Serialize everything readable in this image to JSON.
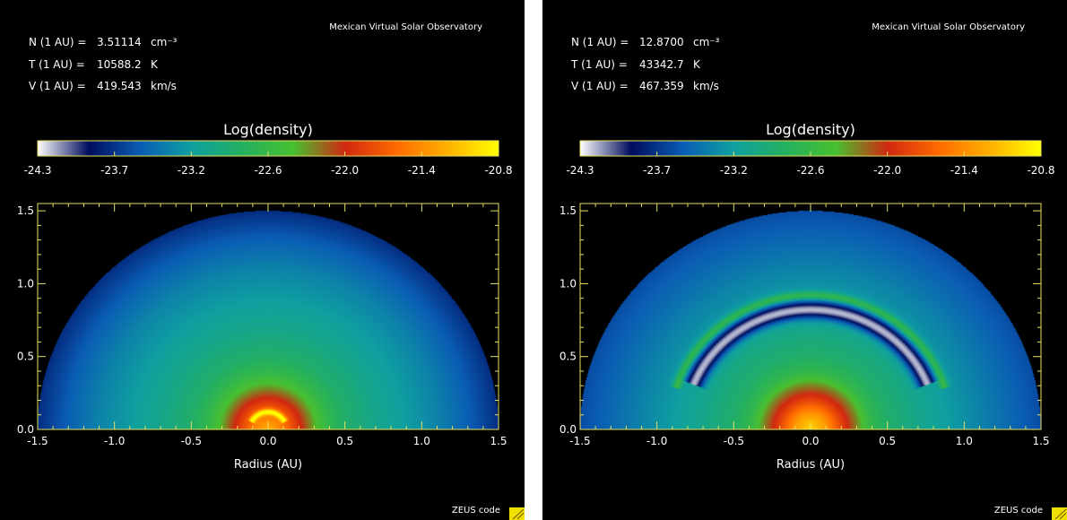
{
  "panels": [
    {
      "observatory": "Mexican Virtual Solar Observatory",
      "params": [
        {
          "label": "N (1 AU) =",
          "value": "3.51114",
          "unit": "cm⁻³"
        },
        {
          "label": "T (1 AU) =",
          "value": "10588.2",
          "unit": "K"
        },
        {
          "label": "V (1 AU) =",
          "value": "419.543",
          "unit": "km/s"
        }
      ],
      "footer": "ZEUS code"
    },
    {
      "observatory": "Mexican Virtual Solar Observatory",
      "params": [
        {
          "label": "N (1 AU) =",
          "value": "12.8700",
          "unit": "cm⁻³"
        },
        {
          "label": "T (1 AU) =",
          "value": "43342.7",
          "unit": "K"
        },
        {
          "label": "V (1 AU) =",
          "value": "467.359",
          "unit": "km/s"
        }
      ],
      "footer": "ZEUS code"
    }
  ],
  "colors": {
    "background": "#000000",
    "axis": "#e8e060",
    "text": "#ffffff",
    "colormap": [
      "#ffffff",
      "#000c5c",
      "#0a5cb4",
      "#0fa0a0",
      "#24b060",
      "#48c030",
      "#d02810",
      "#ff6a00",
      "#ffb000",
      "#ffff00"
    ]
  },
  "chart_data": [
    {
      "type": "heatmap",
      "title": "Log(density)",
      "xlabel": "Radius (AU)",
      "ylabel": "",
      "xlim": [
        -1.5,
        1.5
      ],
      "ylim": [
        0.0,
        1.55
      ],
      "grid": false,
      "x_ticks": [
        "-1.5",
        "-1.0",
        "-0.5",
        "0.0",
        "0.5",
        "1.0",
        "1.5"
      ],
      "y_ticks": [
        "0.0",
        "0.5",
        "1.0",
        "1.5"
      ],
      "colorbar": {
        "label": "Log(density)",
        "min": -24.3,
        "max": -20.8,
        "ticks": [
          "-24.3",
          "-23.7",
          "-23.2",
          "-22.6",
          "-22.0",
          "-21.4",
          "-20.8"
        ]
      },
      "domain_outer_radius": 1.5,
      "radial_profile": {
        "r": [
          0.0,
          0.1,
          0.2,
          0.3,
          0.4,
          0.5,
          0.7,
          0.9,
          1.1,
          1.3,
          1.5
        ],
        "log_density": [
          -21.2,
          -21.5,
          -21.9,
          -22.3,
          -22.6,
          -22.8,
          -23.0,
          -23.15,
          -23.3,
          -23.5,
          -23.75
        ]
      },
      "features": [
        {
          "name": "small shell",
          "r": 0.12,
          "half_width": 0.02,
          "delta": 0.9,
          "max_angle_deg": 65
        }
      ]
    },
    {
      "type": "heatmap",
      "title": "Log(density)",
      "xlabel": "Radius (AU)",
      "ylabel": "",
      "xlim": [
        -1.5,
        1.5
      ],
      "ylim": [
        0.0,
        1.55
      ],
      "grid": false,
      "x_ticks": [
        "-1.5",
        "-1.0",
        "-0.5",
        "0.0",
        "0.5",
        "1.0",
        "1.5"
      ],
      "y_ticks": [
        "0.0",
        "0.5",
        "1.0",
        "1.5"
      ],
      "colorbar": {
        "label": "Log(density)",
        "min": -24.3,
        "max": -20.8,
        "ticks": [
          "-24.3",
          "-23.7",
          "-23.2",
          "-22.6",
          "-22.0",
          "-21.4",
          "-20.8"
        ]
      },
      "domain_outer_radius": 1.5,
      "radial_profile": {
        "r": [
          0.0,
          0.1,
          0.2,
          0.3,
          0.4,
          0.5,
          0.7,
          0.9,
          1.1,
          1.3,
          1.5
        ],
        "log_density": [
          -21.0,
          -21.3,
          -21.8,
          -22.2,
          -22.6,
          -22.8,
          -23.0,
          -23.15,
          -23.3,
          -23.45,
          -23.6
        ]
      },
      "features": [
        {
          "name": "dense rim",
          "r": 0.92,
          "half_width": 0.03,
          "delta": 0.6,
          "max_angle_deg": 72
        },
        {
          "name": "rarefied cavity",
          "r": 0.82,
          "half_width": 0.06,
          "delta": -1.1,
          "max_angle_deg": 68
        }
      ]
    }
  ]
}
